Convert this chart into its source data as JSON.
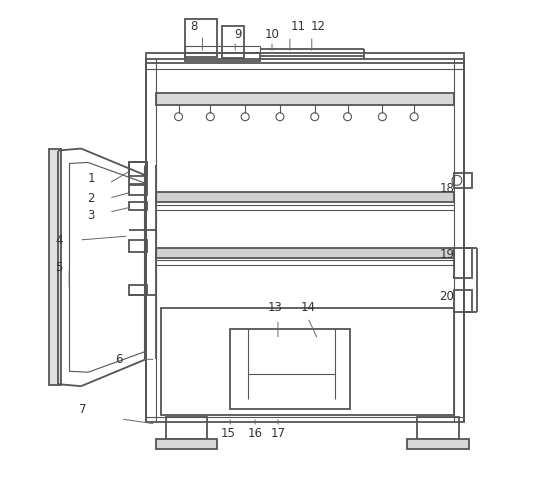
{
  "bg_color": "#ffffff",
  "lc": "#555555",
  "lw": 1.3,
  "tlw": 0.8
}
